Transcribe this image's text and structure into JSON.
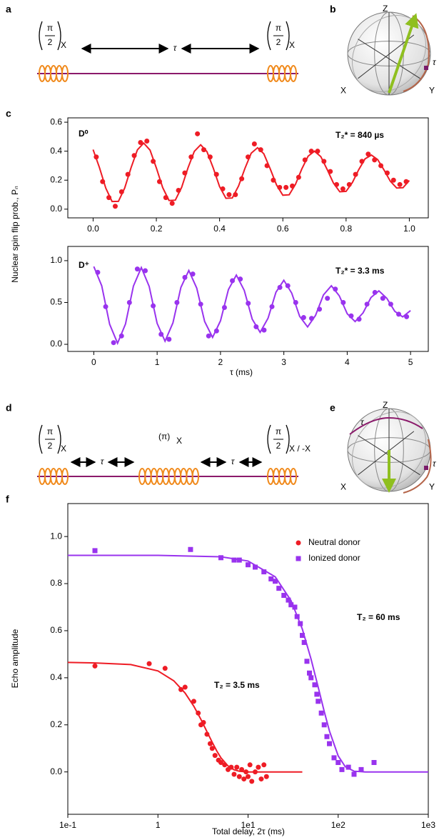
{
  "panel_labels": [
    "a",
    "b",
    "c",
    "d",
    "e",
    "f"
  ],
  "diagrams": {
    "a": {
      "pulses": [
        {
          "numerator": "π",
          "denominator": "2",
          "subscript": "X"
        },
        {
          "numerator": "π",
          "denominator": "2",
          "subscript": "X"
        }
      ],
      "delay": "τ"
    },
    "b": {
      "axes": [
        "Z",
        "X",
        "Y"
      ],
      "rotation": "τ"
    },
    "d": {
      "pulses": [
        {
          "numerator": "π",
          "denominator": "2",
          "subscript": "X"
        },
        {
          "text": "(π)",
          "subscript": "X"
        },
        {
          "numerator": "π",
          "denominator": "2",
          "subscript": "X / -X"
        }
      ],
      "delays": [
        "τ",
        "τ"
      ]
    },
    "e": {
      "axes": [
        "Z",
        "X",
        "Y"
      ],
      "rotations": [
        "τ",
        "τ"
      ]
    }
  },
  "chart_data": [
    {
      "type": "scatter",
      "ylabel": "Nuclear spin flip prob., Pₙ",
      "xlim": [
        -0.08,
        1.06
      ],
      "ylim": [
        -0.06,
        0.63
      ],
      "xticks": [
        {
          "value": 0,
          "label": "0.0"
        },
        0.2,
        0.4,
        0.6,
        0.8,
        {
          "value": 1,
          "label": "1.0"
        }
      ],
      "yticks": [
        {
          "value": 0,
          "label": "0.0"
        },
        0.2,
        0.4,
        0.6
      ],
      "annotations": [
        {
          "text": "D⁰",
          "color": "#ee1c25"
        },
        {
          "text": "T₂* = 840 µs",
          "color": "#ee1c25"
        }
      ],
      "series": [
        {
          "color": "#ee1c25",
          "marker": "circle",
          "x": [
            0.01,
            0.03,
            0.05,
            0.07,
            0.09,
            0.11,
            0.13,
            0.15,
            0.17,
            0.19,
            0.21,
            0.23,
            0.25,
            0.27,
            0.29,
            0.31,
            0.33,
            0.35,
            0.37,
            0.39,
            0.41,
            0.43,
            0.45,
            0.47,
            0.49,
            0.51,
            0.53,
            0.55,
            0.57,
            0.59,
            0.61,
            0.63,
            0.65,
            0.67,
            0.69,
            0.71,
            0.73,
            0.75,
            0.77,
            0.79,
            0.81,
            0.83,
            0.85,
            0.87,
            0.89,
            0.91,
            0.93,
            0.95,
            0.97,
            0.99
          ],
          "values": [
            0.36,
            0.19,
            0.08,
            0.02,
            0.12,
            0.24,
            0.37,
            0.46,
            0.47,
            0.33,
            0.19,
            0.08,
            0.04,
            0.13,
            0.25,
            0.36,
            0.52,
            0.41,
            0.36,
            0.24,
            0.14,
            0.1,
            0.1,
            0.21,
            0.36,
            0.45,
            0.41,
            0.3,
            0.2,
            0.15,
            0.15,
            0.16,
            0.22,
            0.34,
            0.4,
            0.4,
            0.33,
            0.26,
            0.17,
            0.14,
            0.17,
            0.24,
            0.33,
            0.38,
            0.34,
            0.3,
            0.25,
            0.2,
            0.17,
            0.19
          ]
        },
        {
          "color": "#ee1c25",
          "marker": "line",
          "x": [
            0,
            0.02,
            0.04,
            0.06,
            0.08,
            0.1,
            0.12,
            0.14,
            0.16,
            0.18,
            0.2,
            0.22,
            0.24,
            0.26,
            0.28,
            0.3,
            0.32,
            0.34,
            0.36,
            0.38,
            0.4,
            0.42,
            0.44,
            0.46,
            0.48,
            0.5,
            0.52,
            0.54,
            0.56,
            0.58,
            0.6,
            0.62,
            0.64,
            0.66,
            0.68,
            0.7,
            0.72,
            0.74,
            0.76,
            0.78,
            0.8,
            0.82,
            0.84,
            0.86,
            0.88,
            0.9,
            0.92,
            0.94,
            0.96,
            0.98,
            1.0
          ],
          "values": [
            0.411,
            0.287,
            0.145,
            0.053,
            0.054,
            0.146,
            0.286,
            0.409,
            0.456,
            0.407,
            0.285,
            0.149,
            0.06,
            0.062,
            0.151,
            0.284,
            0.399,
            0.444,
            0.397,
            0.283,
            0.156,
            0.075,
            0.077,
            0.16,
            0.281,
            0.386,
            0.424,
            0.382,
            0.279,
            0.167,
            0.096,
            0.099,
            0.171,
            0.277,
            0.366,
            0.4,
            0.363,
            0.275,
            0.18,
            0.12,
            0.123,
            0.184,
            0.272,
            0.347,
            0.373,
            0.342,
            0.27,
            0.193,
            0.146,
            0.148,
            0.198
          ]
        }
      ]
    },
    {
      "type": "scatter",
      "xlabel": "τ (ms)",
      "xlim": [
        -0.41,
        5.28
      ],
      "ylim": [
        -0.085,
        1.17
      ],
      "xticks": [
        0,
        1,
        2,
        3,
        4,
        5
      ],
      "yticks": [
        {
          "value": 0,
          "label": "0.0"
        },
        0.5,
        {
          "value": 1,
          "label": "1.0"
        }
      ],
      "annotations": [
        {
          "text": "D⁺",
          "color": "#9933ee"
        },
        {
          "text": "T₂* = 3.3 ms",
          "color": "#9933ee"
        }
      ],
      "series": [
        {
          "color": "#9933ee",
          "marker": "circle",
          "x": [
            0.0625,
            0.1875,
            0.3125,
            0.4375,
            0.5625,
            0.6875,
            0.8125,
            0.9375,
            1.0625,
            1.1875,
            1.3125,
            1.4375,
            1.5625,
            1.6875,
            1.8125,
            1.9375,
            2.0625,
            2.1875,
            2.3125,
            2.4375,
            2.5625,
            2.6875,
            2.8125,
            2.9375,
            3.0625,
            3.1875,
            3.3125,
            3.4375,
            3.5625,
            3.6875,
            3.8125,
            3.9375,
            4.0625,
            4.1875,
            4.3125,
            4.4375,
            4.5625,
            4.6875,
            4.8125,
            4.9375
          ],
          "values": [
            0.86,
            0.45,
            0.02,
            0.1,
            0.5,
            0.9,
            0.88,
            0.46,
            0.12,
            0.06,
            0.5,
            0.8,
            0.84,
            0.48,
            0.1,
            0.16,
            0.44,
            0.76,
            0.78,
            0.49,
            0.21,
            0.17,
            0.45,
            0.68,
            0.7,
            0.5,
            0.32,
            0.31,
            0.42,
            0.55,
            0.66,
            0.5,
            0.34,
            0.3,
            0.48,
            0.62,
            0.55,
            0.48,
            0.36,
            0.33
          ]
        },
        {
          "color": "#9933ee",
          "marker": "line",
          "x": [
            0,
            0.125,
            0.25,
            0.375,
            0.5,
            0.625,
            0.75,
            0.875,
            1,
            1.125,
            1.25,
            1.375,
            1.5,
            1.625,
            1.75,
            1.875,
            2,
            2.125,
            2.25,
            2.375,
            2.5,
            2.625,
            2.75,
            2.875,
            3,
            3.125,
            3.25,
            3.375,
            3.5,
            3.625,
            3.75,
            3.875,
            4,
            4.125,
            4.25,
            4.375,
            4.5,
            4.625,
            4.75,
            4.875,
            5
          ],
          "values": [
            0.93,
            0.7,
            0.24,
            0.013,
            0.243,
            0.696,
            0.917,
            0.692,
            0.251,
            0.038,
            0.257,
            0.68,
            0.882,
            0.672,
            0.273,
            0.083,
            0.281,
            0.654,
            0.828,
            0.644,
            0.302,
            0.143,
            0.312,
            0.623,
            0.765,
            0.612,
            0.334,
            0.208,
            0.345,
            0.59,
            0.7,
            0.58,
            0.366,
            0.272,
            0.376,
            0.56,
            0.639,
            0.55,
            0.395,
            0.328,
            0.403
          ]
        }
      ]
    },
    {
      "type": "scatter",
      "xscale": "log",
      "xlabel": "Total delay, 2τ (ms)",
      "ylabel": "Echo amplitude",
      "xlim": [
        0.1,
        1000
      ],
      "ylim": [
        -0.18,
        1.14
      ],
      "xticks": [
        {
          "value": 0.1,
          "label": "1e-1"
        },
        1,
        {
          "value": 10,
          "label": "1e1"
        },
        {
          "value": 100,
          "label": "1e2"
        },
        {
          "value": 1000,
          "label": "1e3"
        }
      ],
      "yticks": [
        {
          "value": 0,
          "label": "0.0"
        },
        0.2,
        0.4,
        0.6,
        0.8,
        {
          "value": 1,
          "label": "1.0"
        }
      ],
      "legend": "upper right",
      "annotations": [
        {
          "text": "T₂ = 3.5 ms",
          "color": "#ee1c25"
        },
        {
          "text": "T₂ = 60 ms",
          "color": "#9933ee"
        }
      ],
      "series": [
        {
          "name": "Neutral donor",
          "color": "#ee1c25",
          "marker": "circle",
          "x": [
            0.2,
            0.8,
            1.2,
            1.8,
            2.0,
            2.5,
            2.8,
            3.0,
            3.2,
            3.5,
            3.8,
            4.0,
            4.3,
            4.7,
            5.0,
            5.5,
            6,
            6.5,
            7,
            7.5,
            8,
            8.5,
            9,
            9.5,
            10,
            10.5,
            11,
            12,
            13,
            14,
            15,
            16
          ],
          "values": [
            0.45,
            0.46,
            0.44,
            0.35,
            0.36,
            0.3,
            0.25,
            0.2,
            0.21,
            0.16,
            0.12,
            0.1,
            0.07,
            0.05,
            0.04,
            0.03,
            0.01,
            0.02,
            -0.01,
            0.02,
            -0.02,
            0.01,
            -0.03,
            0,
            -0.02,
            0.03,
            -0.04,
            0,
            0.02,
            -0.03,
            0.03,
            -0.02
          ]
        },
        {
          "name": "Ionized donor",
          "color": "#9933ee",
          "marker": "square",
          "x": [
            0.2,
            2.3,
            5,
            7,
            8,
            10,
            12,
            15,
            18,
            20,
            22,
            25,
            28,
            30,
            33,
            35,
            38,
            40,
            42,
            45,
            48,
            50,
            55,
            58,
            60,
            65,
            70,
            75,
            80,
            90,
            100,
            110,
            130,
            150,
            180,
            250
          ],
          "values": [
            0.94,
            0.945,
            0.91,
            0.9,
            0.9,
            0.88,
            0.87,
            0.85,
            0.82,
            0.81,
            0.78,
            0.75,
            0.73,
            0.71,
            0.7,
            0.66,
            0.63,
            0.58,
            0.55,
            0.47,
            0.42,
            0.4,
            0.37,
            0.33,
            0.3,
            0.25,
            0.2,
            0.15,
            0.12,
            0.06,
            0.04,
            0.01,
            0.02,
            -0.01,
            0.01,
            0.04
          ]
        },
        {
          "color": "#ee1c25",
          "marker": "line",
          "x": [
            0.1,
            0.2,
            0.5,
            1,
            1.5,
            2,
            2.5,
            3,
            3.5,
            4,
            4.5,
            5,
            6,
            7,
            8,
            10,
            15,
            20,
            40
          ],
          "values": [
            0.465,
            0.463,
            0.456,
            0.429,
            0.387,
            0.335,
            0.279,
            0.223,
            0.171,
            0.126,
            0.089,
            0.06,
            0.025,
            0.009,
            0.003,
            0,
            0,
            0,
            0
          ]
        },
        {
          "color": "#9933ee",
          "marker": "line",
          "x": [
            0.1,
            1,
            5,
            10,
            20,
            30,
            40,
            50,
            60,
            70,
            80,
            100,
            120,
            150,
            200,
            500,
            1000
          ],
          "values": [
            0.92,
            0.92,
            0.914,
            0.896,
            0.829,
            0.728,
            0.607,
            0.48,
            0.361,
            0.257,
            0.174,
            0.068,
            0.022,
            0.003,
            0,
            0,
            0
          ]
        }
      ]
    }
  ]
}
